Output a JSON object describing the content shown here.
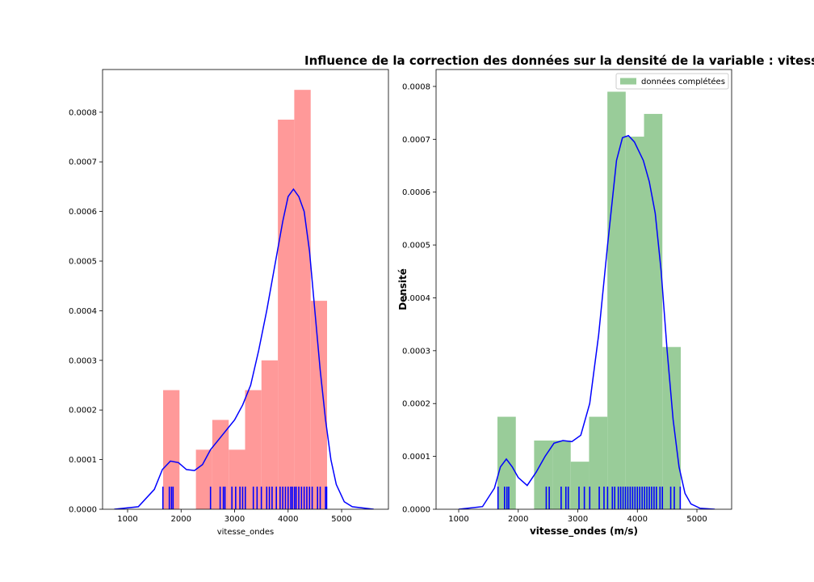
{
  "chart_data": [
    {
      "type": "histogram",
      "xlabel": "vitesse_ondes",
      "bins": [
        1664,
        1970,
        2277,
        2583,
        2890,
        3196,
        3502,
        3809,
        4115,
        4422,
        4728
      ],
      "values": [
        0.00024,
        0,
        0.00012,
        0.00018,
        0.00012,
        0.00024,
        0.0003,
        0.000785,
        0.000845,
        0.00042
      ],
      "color": "#ff9999",
      "kde": {
        "color": "#0000ff",
        "x": [
          750,
          1200,
          1500,
          1650,
          1800,
          1950,
          2100,
          2250,
          2400,
          2550,
          2700,
          2850,
          3000,
          3150,
          3300,
          3450,
          3600,
          3750,
          3900,
          4000,
          4100,
          4200,
          4300,
          4400,
          4500,
          4600,
          4700,
          4800,
          4900,
          5050,
          5200,
          5600
        ],
        "values": [
          0,
          5e-06,
          4e-05,
          8e-05,
          9.7e-05,
          9.4e-05,
          8e-05,
          7.8e-05,
          9e-05,
          0.00012,
          0.00014,
          0.00016,
          0.00018,
          0.00021,
          0.00025,
          0.00032,
          0.0004,
          0.00049,
          0.00058,
          0.00063,
          0.000645,
          0.00063,
          0.0006,
          0.00052,
          0.0004,
          0.00028,
          0.00018,
          0.0001,
          5e-05,
          1.5e-05,
          5e-06,
          0
        ]
      },
      "rug": [
        1660,
        1780,
        1820,
        1850,
        2550,
        2730,
        2790,
        2820,
        2950,
        3020,
        3100,
        3150,
        3200,
        3350,
        3420,
        3500,
        3600,
        3650,
        3700,
        3780,
        3850,
        3900,
        3950,
        4000,
        4050,
        4080,
        4120,
        4150,
        4200,
        4250,
        4300,
        4350,
        4400,
        4450,
        4550,
        4600,
        4700,
        4720
      ],
      "rug_color": "#0000ff",
      "xlim": [
        532,
        5875
      ],
      "xticks": [
        1000,
        2000,
        3000,
        4000,
        5000
      ],
      "ylim": [
        0,
        0.000886
      ],
      "yticks": [
        {
          "value": 0,
          "label": "0.0000"
        },
        {
          "value": 0.0001,
          "label": "0.0001"
        },
        {
          "value": 0.0002,
          "label": "0.0002"
        },
        {
          "value": 0.0003,
          "label": "0.0003"
        },
        {
          "value": 0.0004,
          "label": "0.0004"
        },
        {
          "value": 0.0005,
          "label": "0.0005"
        },
        {
          "value": 0.0006,
          "label": "0.0006"
        },
        {
          "value": 0.0007,
          "label": "0.0007"
        },
        {
          "value": 0.0008,
          "label": "0.0008"
        }
      ]
    },
    {
      "type": "histogram",
      "title": "Influence de la correction des données sur la densité de la variable : vitess",
      "xlabel": "vitesse_ondes (m/s)",
      "ylabel": "Densité",
      "legend": "upper right",
      "name": "données complétées",
      "bins": [
        1651,
        1959,
        2266,
        2574,
        2881,
        3189,
        3497,
        3804,
        4112,
        4420,
        4729
      ],
      "values": [
        0.000175,
        0,
        0.00013,
        0.00013,
        9e-05,
        0.000175,
        0.00079,
        0.000705,
        0.000748,
        0.000307
      ],
      "color": "#99cc99",
      "kde": {
        "color": "#0000ff",
        "x": [
          1000,
          1400,
          1600,
          1700,
          1800,
          1900,
          2000,
          2150,
          2300,
          2450,
          2600,
          2750,
          2900,
          3050,
          3200,
          3350,
          3500,
          3650,
          3750,
          3850,
          3950,
          4100,
          4200,
          4300,
          4400,
          4500,
          4600,
          4700,
          4800,
          4900,
          5050,
          5300
        ],
        "values": [
          0,
          5e-06,
          4e-05,
          8e-05,
          9.5e-05,
          8e-05,
          6e-05,
          4.5e-05,
          7e-05,
          0.0001,
          0.000125,
          0.00013,
          0.000128,
          0.00014,
          0.0002,
          0.00033,
          0.0005,
          0.00066,
          0.000703,
          0.000707,
          0.000695,
          0.00066,
          0.00062,
          0.00056,
          0.00045,
          0.0003,
          0.00017,
          8e-05,
          3e-05,
          1e-05,
          2e-06,
          0
        ]
      },
      "rug": [
        1660,
        1770,
        1810,
        1840,
        2470,
        2520,
        2720,
        2800,
        2840,
        3020,
        3110,
        3200,
        3360,
        3440,
        3500,
        3580,
        3620,
        3680,
        3720,
        3760,
        3800,
        3840,
        3880,
        3920,
        3960,
        4000,
        4040,
        4080,
        4120,
        4160,
        4200,
        4240,
        4280,
        4320,
        4380,
        4420,
        4560,
        4620,
        4720
      ],
      "rug_color": "#0000ff",
      "xlim": [
        620,
        5583
      ],
      "xticks": [
        1000,
        2000,
        3000,
        4000,
        5000
      ],
      "ylim": [
        0,
        0.000832
      ],
      "yticks": [
        {
          "value": 0,
          "label": "0.0000"
        },
        {
          "value": 0.0001,
          "label": "0.0001"
        },
        {
          "value": 0.0002,
          "label": "0.0002"
        },
        {
          "value": 0.0003,
          "label": "0.0003"
        },
        {
          "value": 0.0004,
          "label": "0.0004"
        },
        {
          "value": 0.0005,
          "label": "0.0005"
        },
        {
          "value": 0.0006,
          "label": "0.0006"
        },
        {
          "value": 0.0007,
          "label": "0.0007"
        },
        {
          "value": 0.0008,
          "label": "0.0008"
        }
      ]
    }
  ]
}
